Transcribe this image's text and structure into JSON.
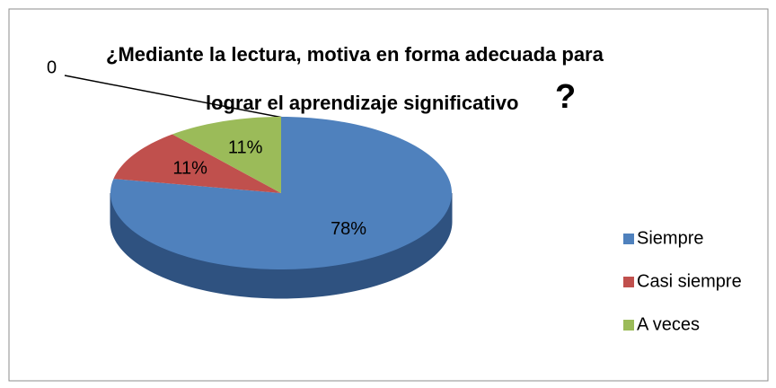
{
  "chart_data": {
    "type": "pie3d",
    "title": [
      "¿Mediante la lectura, motiva en forma adecuada para",
      "lograr el aprendizaje significativo",
      "?"
    ],
    "annotations": [
      "0",
      "?"
    ],
    "categories": [
      "Siempre",
      "Casi siempre",
      "A veces"
    ],
    "values": [
      78,
      11,
      11
    ],
    "value_labels": [
      "78%",
      "11%",
      "11%"
    ],
    "colors": [
      "#4f81bd",
      "#c0504d",
      "#9bbb59"
    ],
    "side_colors": [
      "#2f5280",
      "#8a3331",
      "#6a8a38"
    ],
    "legend": "right"
  }
}
